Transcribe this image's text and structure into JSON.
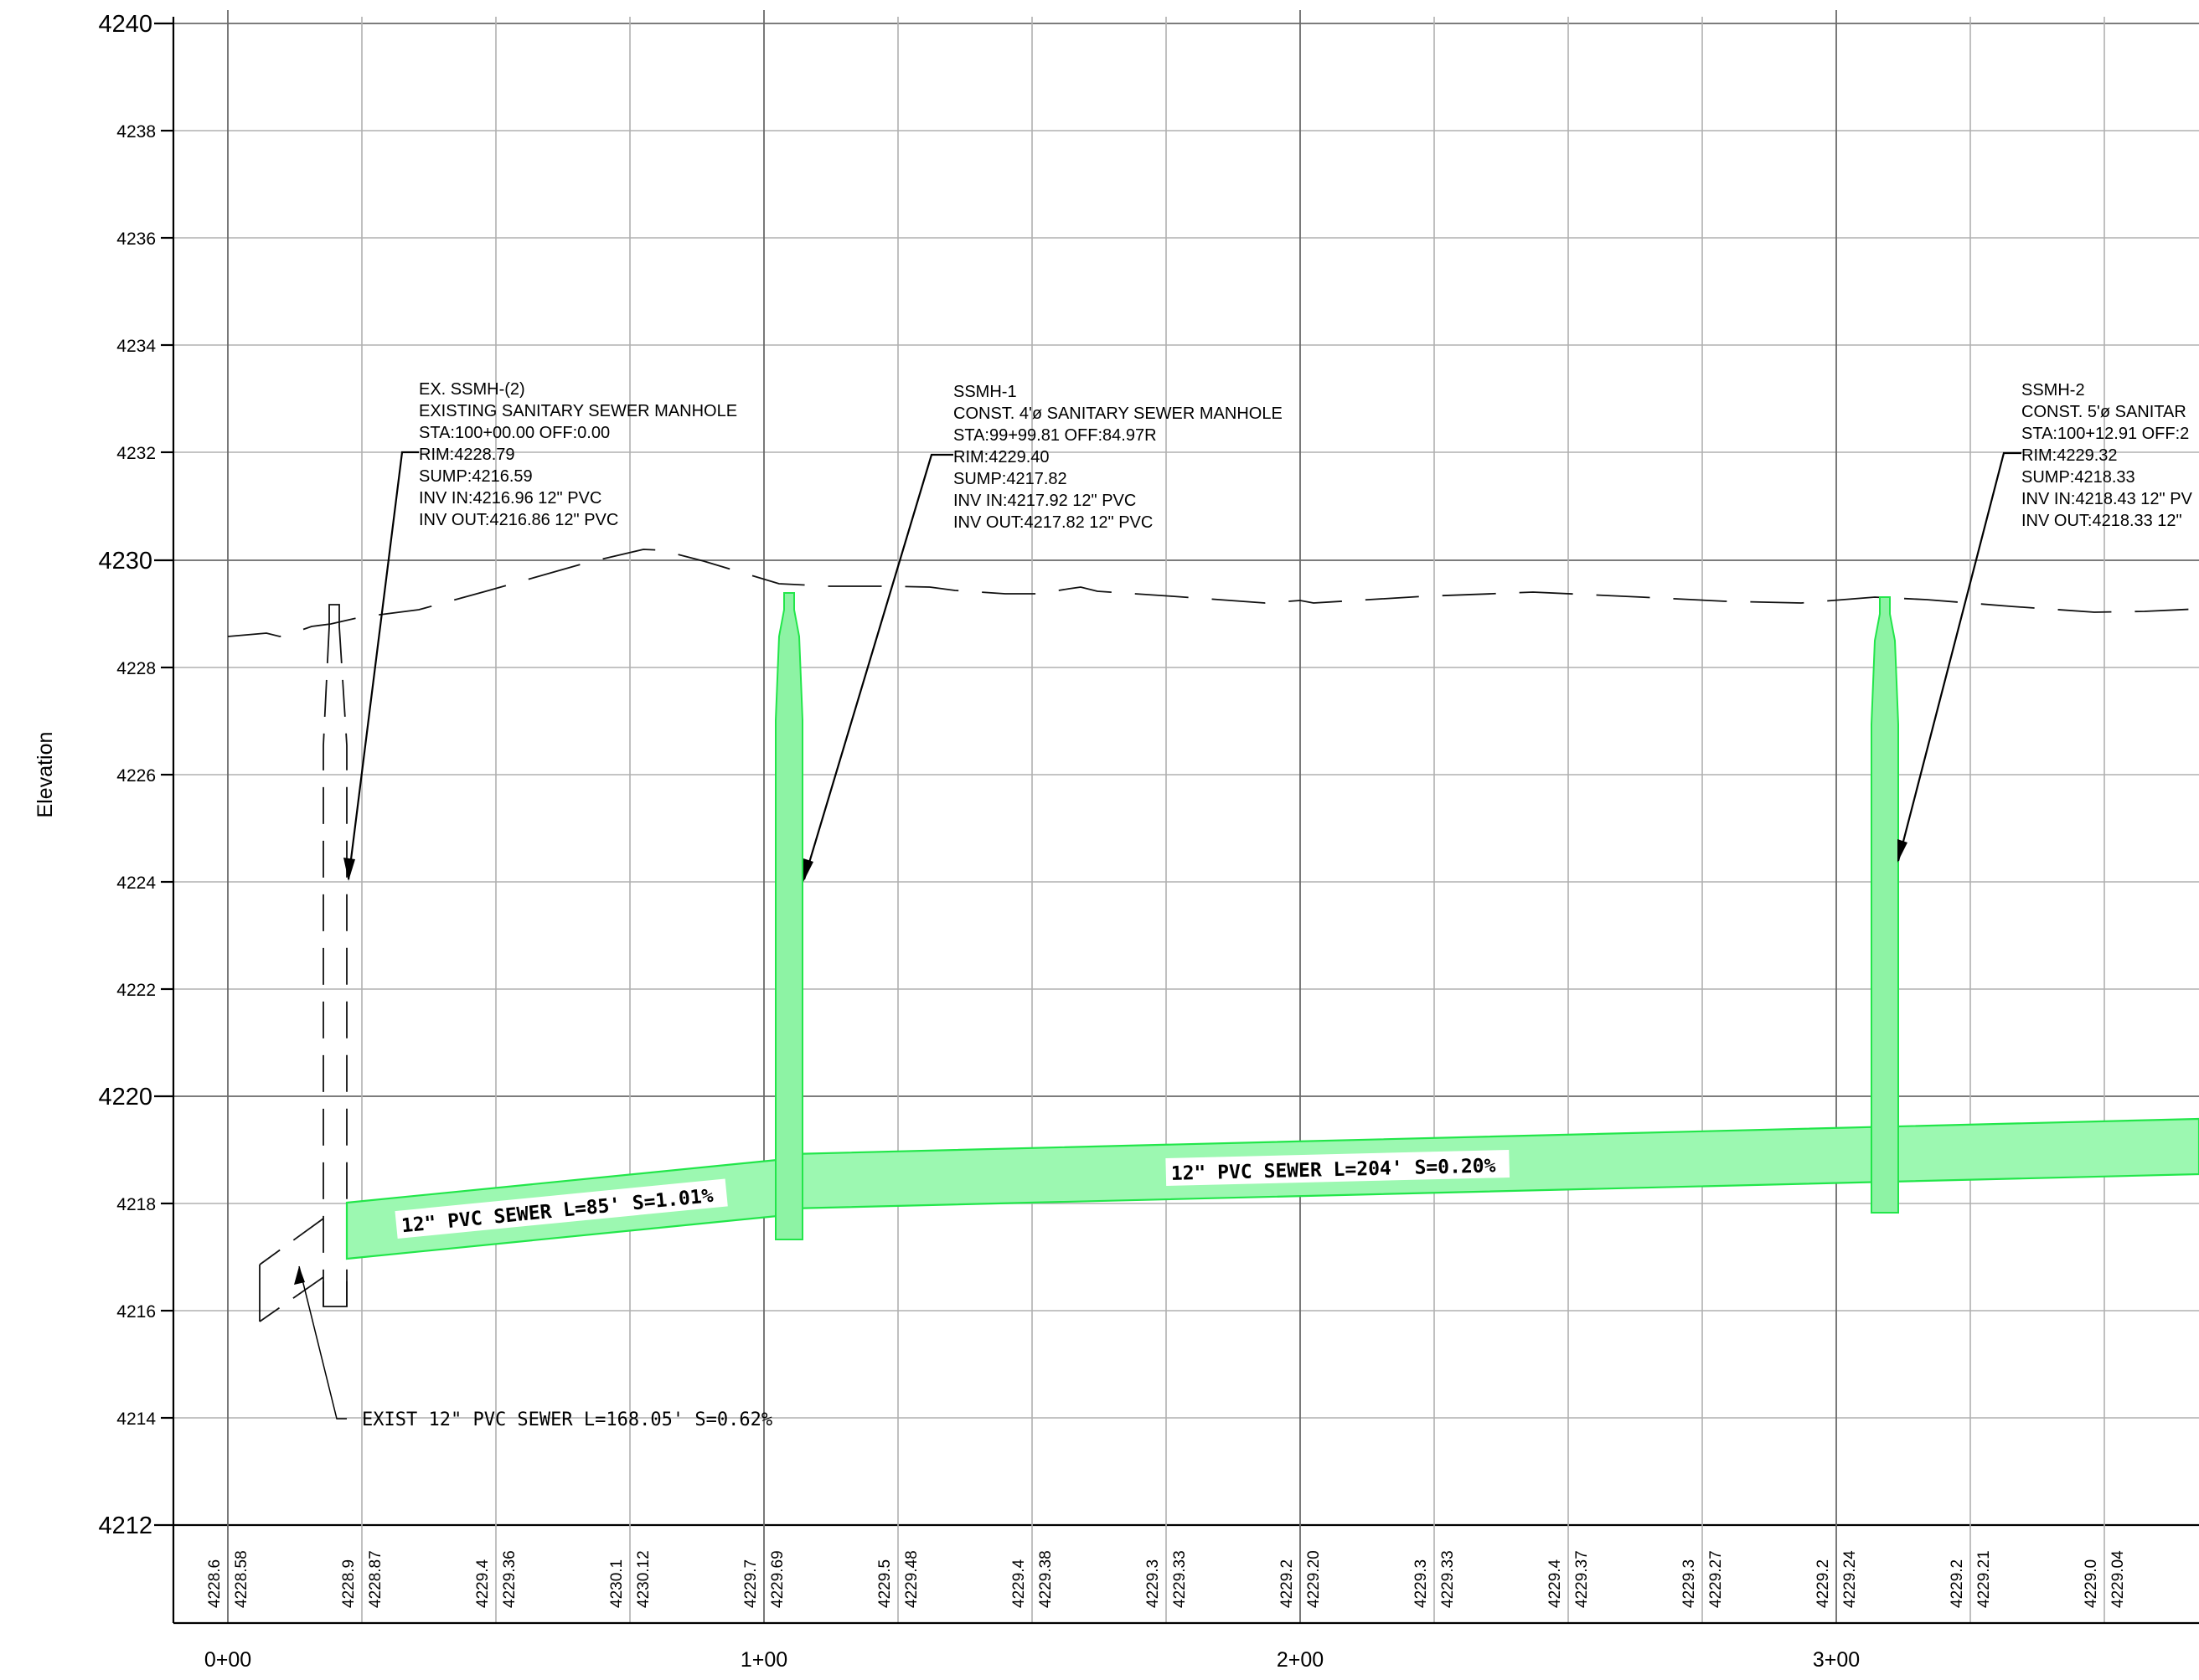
{
  "ylabel": "Elevation",
  "y_ticks": [
    "4240",
    "4238",
    "4236",
    "4234",
    "4232",
    "4230",
    "4228",
    "4226",
    "4224",
    "4222",
    "4220",
    "4218",
    "4216",
    "4214",
    "4212"
  ],
  "x_ticks": [
    "0+00",
    "1+00",
    "2+00",
    "3+00"
  ],
  "bottom_band": [
    {
      "existing": "4228.6",
      "proposed": "4228.58"
    },
    {
      "existing": "4228.9",
      "proposed": "4228.87"
    },
    {
      "existing": "4229.4",
      "proposed": "4229.36"
    },
    {
      "existing": "4230.1",
      "proposed": "4230.12"
    },
    {
      "existing": "4229.7",
      "proposed": "4229.69"
    },
    {
      "existing": "4229.5",
      "proposed": "4229.48"
    },
    {
      "existing": "4229.4",
      "proposed": "4229.38"
    },
    {
      "existing": "4229.3",
      "proposed": "4229.33"
    },
    {
      "existing": "4229.2",
      "proposed": "4229.20"
    },
    {
      "existing": "4229.3",
      "proposed": "4229.33"
    },
    {
      "existing": "4229.4",
      "proposed": "4229.37"
    },
    {
      "existing": "4229.3",
      "proposed": "4229.27"
    },
    {
      "existing": "4229.2",
      "proposed": "4229.24"
    },
    {
      "existing": "4229.2",
      "proposed": "4229.21"
    },
    {
      "existing": "4229.0",
      "proposed": "4229.04"
    }
  ],
  "manholes": [
    {
      "lines": [
        "EX. SSMH-(2)",
        "EXISTING SANITARY SEWER MANHOLE",
        "STA:100+00.00 OFF:0.00",
        "RIM:4228.79",
        "SUMP:4216.59",
        "INV IN:4216.96 12\" PVC",
        "INV OUT:4216.86 12\" PVC"
      ]
    },
    {
      "lines": [
        "SSMH-1",
        "CONST. 4'ø SANITARY SEWER MANHOLE",
        "STA:99+99.81 OFF:84.97R",
        "RIM:4229.40",
        "SUMP:4217.82",
        "INV IN:4217.92 12\" PVC",
        "INV OUT:4217.82 12\" PVC"
      ]
    },
    {
      "lines": [
        "SSMH-2",
        "CONST. 5'ø SANITAR",
        "STA:100+12.91 OFF:2",
        "RIM:4229.32",
        "SUMP:4218.33",
        "INV IN:4218.43 12\" PV",
        "INV OUT:4218.33 12\""
      ]
    }
  ],
  "pipe_labels": [
    "12\" PVC SEWER L=85' S=1.01%",
    "12\" PVC SEWER L=204' S=0.20%"
  ],
  "existing_pipe_label": "EXIST 12\" PVC SEWER L=168.05' S=0.62%",
  "colors": {
    "proposed_fill": "#9cf8b1",
    "proposed_stroke": "#22e64a"
  }
}
